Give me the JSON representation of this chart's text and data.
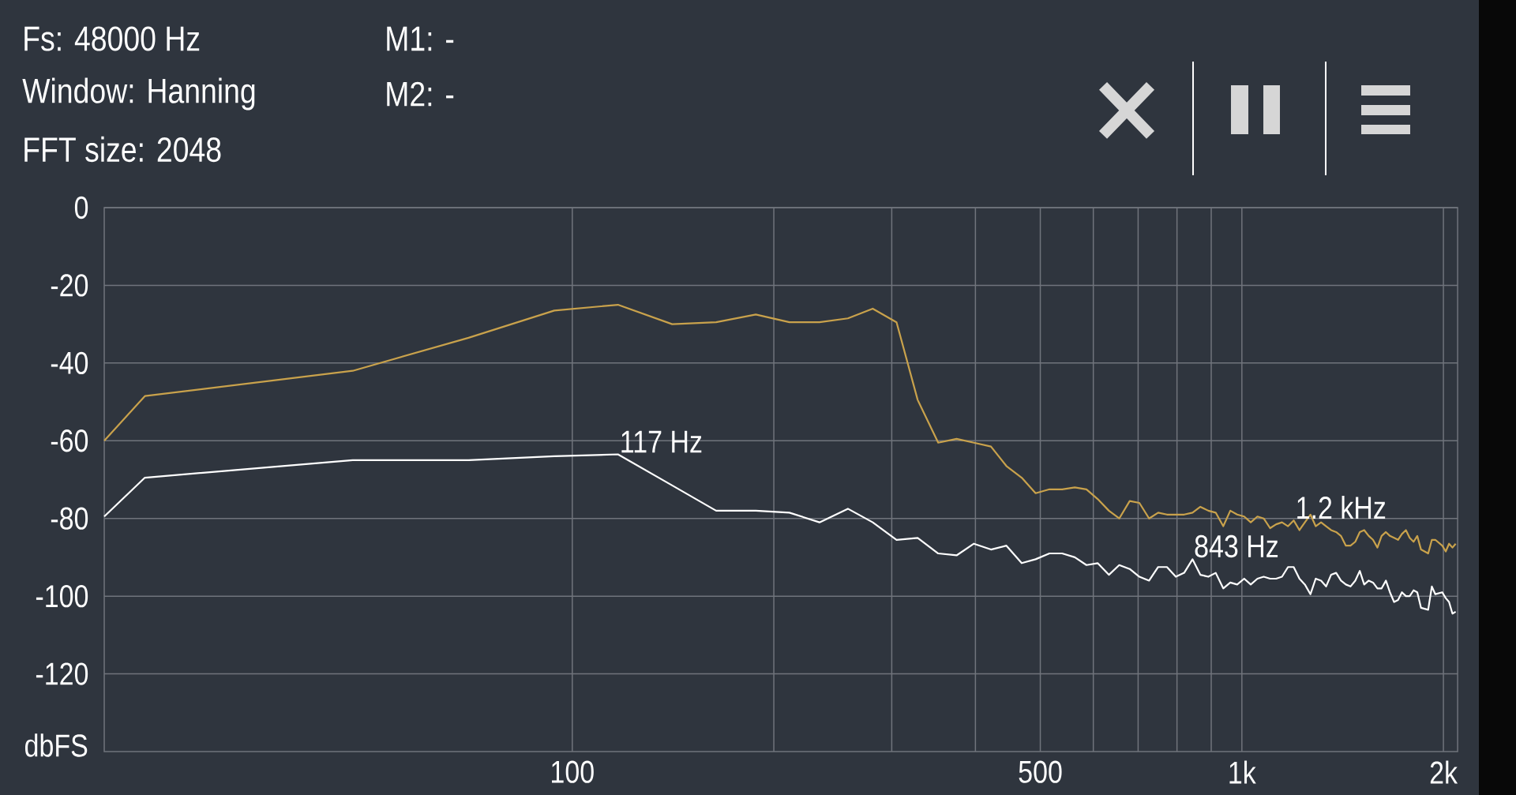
{
  "chart_data": {
    "type": "line",
    "ylabel": "dbFS",
    "annotations": [
      "Fs: 48000 Hz",
      "Window: Hanning",
      "FFT size: 2048",
      "M1: -",
      "M2: -",
      {
        "text": "117 Hz",
        "x": 117,
        "y": -63.5
      },
      {
        "text": "843 Hz",
        "x": 843,
        "y": -90.5
      },
      {
        "text": "1.2  kHz",
        "x": 1195,
        "y": -80.5
      }
    ],
    "x": [
      20,
      23,
      47,
      70,
      94,
      117,
      141,
      164,
      188,
      211,
      234,
      258,
      281,
      305,
      328,
      352,
      375,
      398,
      422,
      445,
      469,
      492,
      516,
      539,
      563,
      586,
      609,
      633,
      656,
      680,
      703,
      727,
      750,
      773,
      797,
      820,
      844,
      867,
      891,
      914,
      938,
      961,
      984,
      1008,
      1031,
      1055,
      1078,
      1102,
      1125,
      1148,
      1172,
      1195,
      1219,
      1242,
      1266,
      1289,
      1313,
      1336,
      1359,
      1383,
      1406,
      1430,
      1453,
      1477,
      1500,
      1523,
      1547,
      1570,
      1594,
      1617,
      1641,
      1664,
      1688,
      1711,
      1734,
      1758,
      1781,
      1805,
      1828,
      1852,
      1898,
      1922,
      1945,
      1992,
      2016,
      2039,
      2063,
      2086
    ],
    "series": [
      {
        "color": "#c9a24c",
        "values": [
          -60,
          -48.5,
          -42,
          -33.5,
          -26.5,
          -25,
          -30,
          -29.5,
          -27.5,
          -29.5,
          -29.5,
          -28.5,
          -26,
          -29.5,
          -49.5,
          -60.5,
          -59.5,
          -60.5,
          -61.5,
          -66.5,
          -69.5,
          -73.5,
          -72.5,
          -72.5,
          -72,
          -72.5,
          -75,
          -78,
          -80,
          -75.5,
          -76,
          -80,
          -78.5,
          -79,
          -79,
          -79,
          -78.5,
          -77,
          -78,
          -78.5,
          -82,
          -78,
          -79,
          -79.5,
          -81,
          -79.5,
          -80,
          -82.5,
          -81.5,
          -81,
          -82,
          -80.5,
          -83,
          -81,
          -79,
          -82,
          -81,
          -82,
          -83,
          -83.5,
          -84.5,
          -87,
          -87,
          -86,
          -83.5,
          -83,
          -84.5,
          -85.5,
          -87.5,
          -84.5,
          -83.5,
          -84.5,
          -85,
          -85.5,
          -84,
          -83,
          -85,
          -86,
          -84.5,
          -88,
          -89,
          -85.5,
          -85.5,
          -87,
          -88.5,
          -86.5,
          -87.5,
          -86.5
        ]
      },
      {
        "color": "#ffffff",
        "values": [
          -79.5,
          -69.5,
          -65,
          -65,
          -64,
          -63.5,
          -71.5,
          -78,
          -78,
          -78.5,
          -81,
          -77.5,
          -81,
          -85.5,
          -85,
          -89,
          -89.5,
          -86.5,
          -88,
          -87,
          -91.5,
          -90.5,
          -89,
          -89,
          -90,
          -92,
          -91.5,
          -94.5,
          -92,
          -93,
          -95,
          -96,
          -92.5,
          -92.5,
          -95,
          -94,
          -90.5,
          -94.5,
          -95,
          -94,
          -98,
          -96.5,
          -97,
          -95.5,
          -97,
          -95.5,
          -95,
          -95.5,
          -95.5,
          -95,
          -92.5,
          -92.5,
          -95.5,
          -97,
          -99.5,
          -95.5,
          -96,
          -97.5,
          -94.5,
          -94,
          -96,
          -97,
          -97.5,
          -96,
          -93.5,
          -97,
          -96,
          -96.5,
          -98,
          -98,
          -96,
          -99,
          -101.5,
          -101,
          -99,
          -100,
          -100,
          -98.5,
          -99,
          -103,
          -103.5,
          -97.5,
          -99.5,
          -99,
          -100.5,
          -101.5,
          -104.5,
          -104
        ]
      }
    ],
    "log": "x",
    "xlim": [
      20,
      2100
    ],
    "xticks": [
      100,
      {
        "value": 200,
        "label": null
      },
      {
        "value": 300,
        "label": null
      },
      {
        "value": 400,
        "label": null
      },
      500,
      {
        "value": 600,
        "label": null
      },
      {
        "value": 700,
        "label": null
      },
      {
        "value": 800,
        "label": null
      },
      {
        "value": 900,
        "label": null
      },
      {
        "value": 1000,
        "label": "1k"
      },
      {
        "value": 2000,
        "label": "2k"
      }
    ],
    "ylim": [
      -140,
      0
    ],
    "yticks": [
      0,
      -20,
      -40,
      -60,
      -80,
      -100,
      -120
    ],
    "grid": true
  }
}
